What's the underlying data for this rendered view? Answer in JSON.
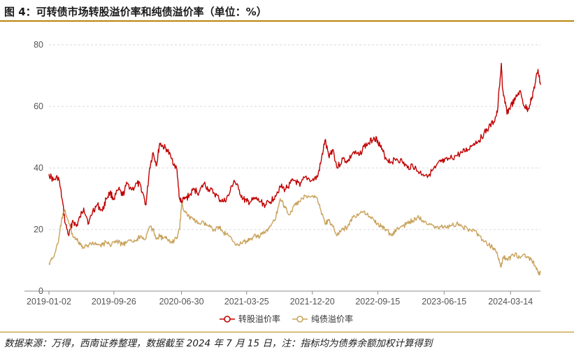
{
  "figure": {
    "title": "图 4：可转债市场转股溢价率和纯债溢价率（单位：%）",
    "source": "数据来源：万得，西南证券整理，数据截至 2024 年 7 月 15 日，注：指标均为债券余额加权计算得到"
  },
  "chart_data": {
    "type": "line",
    "title": "",
    "xlabel": "",
    "ylabel": "",
    "ylim": [
      0,
      80
    ],
    "yticks": [
      0,
      20,
      40,
      60,
      80
    ],
    "x_tick_labels": [
      "2019-01-02",
      "2019-09-26",
      "2020-06-30",
      "2021-03-25",
      "2021-12-20",
      "2022-09-15",
      "2023-06-15",
      "2024-03-14"
    ],
    "x_range": [
      "2019-01-02",
      "2024-07-15"
    ],
    "grid": "horizontal dashed",
    "legend_position": "bottom-center",
    "series": [
      {
        "name": "转股溢价率",
        "color": "#c00000",
        "points": [
          [
            "2019-01-02",
            38
          ],
          [
            "2019-01-20",
            36
          ],
          [
            "2019-02-10",
            37
          ],
          [
            "2019-02-25",
            30
          ],
          [
            "2019-03-10",
            22
          ],
          [
            "2019-03-25",
            18
          ],
          [
            "2019-04-10",
            23
          ],
          [
            "2019-04-25",
            21
          ],
          [
            "2019-05-10",
            24
          ],
          [
            "2019-05-25",
            27
          ],
          [
            "2019-06-15",
            22
          ],
          [
            "2019-07-01",
            26
          ],
          [
            "2019-07-20",
            28
          ],
          [
            "2019-08-10",
            26
          ],
          [
            "2019-08-25",
            30
          ],
          [
            "2019-09-10",
            32
          ],
          [
            "2019-09-26",
            30
          ],
          [
            "2019-10-15",
            33
          ],
          [
            "2019-11-01",
            31
          ],
          [
            "2019-11-20",
            35
          ],
          [
            "2019-12-10",
            33
          ],
          [
            "2019-12-31",
            35
          ],
          [
            "2020-01-15",
            34
          ],
          [
            "2020-02-05",
            28
          ],
          [
            "2020-02-20",
            40
          ],
          [
            "2020-03-05",
            45
          ],
          [
            "2020-03-20",
            41
          ],
          [
            "2020-04-01",
            48
          ],
          [
            "2020-04-15",
            47
          ],
          [
            "2020-05-01",
            46
          ],
          [
            "2020-05-20",
            43
          ],
          [
            "2020-06-10",
            40
          ],
          [
            "2020-06-22",
            30
          ],
          [
            "2020-06-30",
            29
          ],
          [
            "2020-07-15",
            30
          ],
          [
            "2020-08-01",
            31
          ],
          [
            "2020-08-20",
            33
          ],
          [
            "2020-09-10",
            32
          ],
          [
            "2020-10-01",
            35
          ],
          [
            "2020-10-20",
            33
          ],
          [
            "2020-11-10",
            32
          ],
          [
            "2020-12-01",
            30
          ],
          [
            "2020-12-20",
            29
          ],
          [
            "2021-01-10",
            31
          ],
          [
            "2021-02-01",
            36
          ],
          [
            "2021-02-20",
            33
          ],
          [
            "2021-03-10",
            30
          ],
          [
            "2021-03-25",
            29
          ],
          [
            "2021-04-10",
            29
          ],
          [
            "2021-05-01",
            30
          ],
          [
            "2021-05-20",
            29
          ],
          [
            "2021-06-10",
            28
          ],
          [
            "2021-06-30",
            29
          ],
          [
            "2021-07-20",
            31
          ],
          [
            "2021-08-10",
            34
          ],
          [
            "2021-08-30",
            33
          ],
          [
            "2021-09-20",
            35
          ],
          [
            "2021-10-10",
            36
          ],
          [
            "2021-10-30",
            34
          ],
          [
            "2021-11-20",
            37
          ],
          [
            "2021-12-20",
            36
          ],
          [
            "2022-01-10",
            37
          ],
          [
            "2022-01-25",
            42
          ],
          [
            "2022-02-10",
            49
          ],
          [
            "2022-02-25",
            44
          ],
          [
            "2022-03-15",
            46
          ],
          [
            "2022-04-01",
            40
          ],
          [
            "2022-04-25",
            43
          ],
          [
            "2022-05-15",
            42
          ],
          [
            "2022-06-05",
            45
          ],
          [
            "2022-06-30",
            44
          ],
          [
            "2022-07-20",
            47
          ],
          [
            "2022-08-10",
            48
          ],
          [
            "2022-08-30",
            50
          ],
          [
            "2022-09-15",
            49
          ],
          [
            "2022-10-01",
            46
          ],
          [
            "2022-10-20",
            43
          ],
          [
            "2022-11-10",
            42
          ],
          [
            "2022-12-01",
            43
          ],
          [
            "2022-12-25",
            42
          ],
          [
            "2023-01-15",
            40
          ],
          [
            "2023-02-05",
            41
          ],
          [
            "2023-02-25",
            39
          ],
          [
            "2023-03-20",
            38
          ],
          [
            "2023-04-15",
            38
          ],
          [
            "2023-05-10",
            40
          ],
          [
            "2023-06-01",
            42
          ],
          [
            "2023-06-15",
            42
          ],
          [
            "2023-07-10",
            43
          ],
          [
            "2023-08-05",
            44
          ],
          [
            "2023-08-30",
            45
          ],
          [
            "2023-09-20",
            46
          ],
          [
            "2023-10-15",
            48
          ],
          [
            "2023-11-05",
            49
          ],
          [
            "2023-11-25",
            51
          ],
          [
            "2023-12-15",
            53
          ],
          [
            "2024-01-05",
            55
          ],
          [
            "2024-01-20",
            58
          ],
          [
            "2024-02-05",
            74
          ],
          [
            "2024-02-10",
            66
          ],
          [
            "2024-02-20",
            61
          ],
          [
            "2024-03-01",
            58
          ],
          [
            "2024-03-14",
            60
          ],
          [
            "2024-04-01",
            62
          ],
          [
            "2024-04-20",
            65
          ],
          [
            "2024-05-10",
            60
          ],
          [
            "2024-05-25",
            59
          ],
          [
            "2024-06-10",
            63
          ],
          [
            "2024-06-25",
            68
          ],
          [
            "2024-07-05",
            72
          ],
          [
            "2024-07-15",
            67
          ]
        ]
      },
      {
        "name": "纯债溢价率",
        "color": "#c9a25b",
        "points": [
          [
            "2019-01-02",
            9
          ],
          [
            "2019-01-20",
            11
          ],
          [
            "2019-02-10",
            16
          ],
          [
            "2019-02-25",
            24
          ],
          [
            "2019-03-10",
            26
          ],
          [
            "2019-03-25",
            22
          ],
          [
            "2019-04-10",
            18
          ],
          [
            "2019-04-25",
            17
          ],
          [
            "2019-05-10",
            15
          ],
          [
            "2019-05-25",
            14
          ],
          [
            "2019-06-15",
            15
          ],
          [
            "2019-07-01",
            16
          ],
          [
            "2019-07-20",
            15
          ],
          [
            "2019-08-10",
            15
          ],
          [
            "2019-08-25",
            16
          ],
          [
            "2019-09-10",
            15
          ],
          [
            "2019-09-26",
            16
          ],
          [
            "2019-10-15",
            16
          ],
          [
            "2019-11-01",
            15
          ],
          [
            "2019-11-20",
            16
          ],
          [
            "2019-12-10",
            16
          ],
          [
            "2019-12-31",
            17
          ],
          [
            "2020-01-15",
            18
          ],
          [
            "2020-02-05",
            17
          ],
          [
            "2020-02-20",
            21
          ],
          [
            "2020-03-05",
            20
          ],
          [
            "2020-03-20",
            17
          ],
          [
            "2020-04-01",
            18
          ],
          [
            "2020-04-15",
            17
          ],
          [
            "2020-05-01",
            17
          ],
          [
            "2020-05-20",
            16
          ],
          [
            "2020-06-10",
            17
          ],
          [
            "2020-06-22",
            20
          ],
          [
            "2020-06-30",
            28
          ],
          [
            "2020-07-15",
            26
          ],
          [
            "2020-08-01",
            24
          ],
          [
            "2020-08-20",
            23
          ],
          [
            "2020-09-10",
            22
          ],
          [
            "2020-10-01",
            22
          ],
          [
            "2020-10-20",
            21
          ],
          [
            "2020-11-10",
            20
          ],
          [
            "2020-12-01",
            21
          ],
          [
            "2020-12-20",
            19
          ],
          [
            "2021-01-10",
            18
          ],
          [
            "2021-02-01",
            16
          ],
          [
            "2021-02-20",
            15
          ],
          [
            "2021-03-10",
            16
          ],
          [
            "2021-03-25",
            16
          ],
          [
            "2021-04-10",
            17
          ],
          [
            "2021-05-01",
            18
          ],
          [
            "2021-05-20",
            18
          ],
          [
            "2021-06-10",
            19
          ],
          [
            "2021-06-30",
            21
          ],
          [
            "2021-07-20",
            23
          ],
          [
            "2021-08-10",
            30
          ],
          [
            "2021-08-30",
            27
          ],
          [
            "2021-09-20",
            25
          ],
          [
            "2021-10-10",
            28
          ],
          [
            "2021-10-30",
            29
          ],
          [
            "2021-11-20",
            31
          ],
          [
            "2021-12-20",
            31
          ],
          [
            "2022-01-10",
            30
          ],
          [
            "2022-01-25",
            26
          ],
          [
            "2022-02-10",
            22
          ],
          [
            "2022-02-25",
            23
          ],
          [
            "2022-03-15",
            21
          ],
          [
            "2022-04-01",
            18
          ],
          [
            "2022-04-25",
            20
          ],
          [
            "2022-05-15",
            21
          ],
          [
            "2022-06-05",
            24
          ],
          [
            "2022-06-30",
            25
          ],
          [
            "2022-07-20",
            26
          ],
          [
            "2022-08-10",
            24
          ],
          [
            "2022-08-30",
            23
          ],
          [
            "2022-09-15",
            22
          ],
          [
            "2022-10-01",
            21
          ],
          [
            "2022-10-20",
            20
          ],
          [
            "2022-11-10",
            18
          ],
          [
            "2022-12-01",
            20
          ],
          [
            "2022-12-25",
            21
          ],
          [
            "2023-01-15",
            22
          ],
          [
            "2023-02-05",
            23
          ],
          [
            "2023-02-25",
            24
          ],
          [
            "2023-03-20",
            23
          ],
          [
            "2023-04-15",
            22
          ],
          [
            "2023-05-10",
            21
          ],
          [
            "2023-06-01",
            21
          ],
          [
            "2023-06-15",
            21
          ],
          [
            "2023-07-10",
            21
          ],
          [
            "2023-08-05",
            22
          ],
          [
            "2023-08-30",
            21
          ],
          [
            "2023-09-20",
            20
          ],
          [
            "2023-10-15",
            20
          ],
          [
            "2023-11-05",
            18
          ],
          [
            "2023-11-25",
            16
          ],
          [
            "2023-12-15",
            15
          ],
          [
            "2024-01-05",
            14
          ],
          [
            "2024-01-20",
            12
          ],
          [
            "2024-02-05",
            8
          ],
          [
            "2024-02-10",
            10
          ],
          [
            "2024-02-20",
            11
          ],
          [
            "2024-03-01",
            10
          ],
          [
            "2024-03-14",
            11
          ],
          [
            "2024-04-01",
            12
          ],
          [
            "2024-04-20",
            11
          ],
          [
            "2024-05-10",
            12
          ],
          [
            "2024-05-25",
            11
          ],
          [
            "2024-06-10",
            10
          ],
          [
            "2024-06-25",
            8
          ],
          [
            "2024-07-05",
            6
          ],
          [
            "2024-07-15",
            6
          ]
        ]
      }
    ]
  }
}
